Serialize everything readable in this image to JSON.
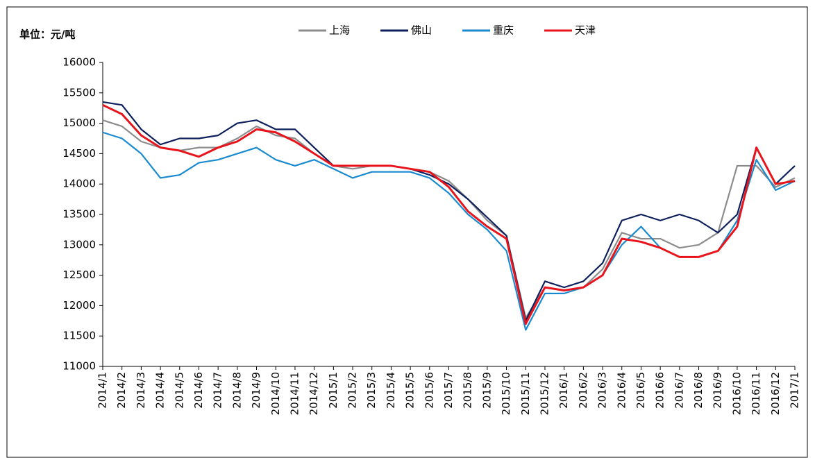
{
  "chart_data": {
    "type": "line",
    "unit_label": "单位：元/吨",
    "categories": [
      "2014/1",
      "2014/2",
      "2014/3",
      "2014/4",
      "2014/5",
      "2014/6",
      "2014/7",
      "2014/8",
      "2014/9",
      "2014/10",
      "2014/11",
      "2014/12",
      "2015/1",
      "2015/2",
      "2015/3",
      "2015/4",
      "2015/5",
      "2015/6",
      "2015/7",
      "2015/8",
      "2015/9",
      "2015/10",
      "2015/11",
      "2015/12",
      "2016/1",
      "2016/2",
      "2016/3",
      "2016/4",
      "2016/5",
      "2016/6",
      "2016/7",
      "2016/8",
      "2016/9",
      "2016/10",
      "2016/11",
      "2016/12",
      "2017/1"
    ],
    "series": [
      {
        "name": "上海",
        "color": "#8c8c8c",
        "values": [
          15050,
          14950,
          14700,
          14600,
          14550,
          14600,
          14600,
          14750,
          14950,
          14800,
          14750,
          14500,
          14300,
          14250,
          14300,
          14300,
          14250,
          14200,
          14050,
          13750,
          13400,
          13150,
          11800,
          12300,
          12250,
          12300,
          12600,
          13200,
          13100,
          13100,
          12950,
          13000,
          13200,
          14300,
          14300,
          13950,
          14100
        ]
      },
      {
        "name": "佛山",
        "color": "#0d1f5c",
        "values": [
          15350,
          15300,
          14900,
          14650,
          14750,
          14750,
          14800,
          15000,
          15050,
          14900,
          14900,
          14600,
          14300,
          14300,
          14300,
          14300,
          14250,
          14150,
          14000,
          13750,
          13450,
          13150,
          11750,
          12400,
          12300,
          12400,
          12700,
          13400,
          13500,
          13400,
          13500,
          13400,
          13200,
          13500,
          14600,
          14000,
          14300
        ]
      },
      {
        "name": "重庆",
        "color": "#1a8ad0",
        "values": [
          14850,
          14750,
          14500,
          14100,
          14150,
          14350,
          14400,
          14500,
          14600,
          14400,
          14300,
          14400,
          14250,
          14100,
          14200,
          14200,
          14200,
          14100,
          13850,
          13500,
          13250,
          12900,
          11600,
          12200,
          12200,
          12300,
          12500,
          13000,
          13300,
          12950,
          12800,
          12800,
          12900,
          13400,
          14400,
          13900,
          14050
        ]
      },
      {
        "name": "天津",
        "color": "#e8141c",
        "values": [
          15300,
          15150,
          14800,
          14600,
          14550,
          14450,
          14600,
          14700,
          14900,
          14850,
          14700,
          14500,
          14300,
          14300,
          14300,
          14300,
          14250,
          14200,
          13950,
          13550,
          13300,
          13100,
          11700,
          12300,
          12250,
          12300,
          12500,
          13100,
          13050,
          12950,
          12800,
          12800,
          12900,
          13300,
          14600,
          14000,
          14050
        ]
      }
    ],
    "ylim": [
      11000,
      16000
    ],
    "yticks": [
      11000,
      11500,
      12000,
      12500,
      13000,
      13500,
      14000,
      14500,
      15000,
      15500,
      16000
    ],
    "legend": "top",
    "grid": false
  }
}
